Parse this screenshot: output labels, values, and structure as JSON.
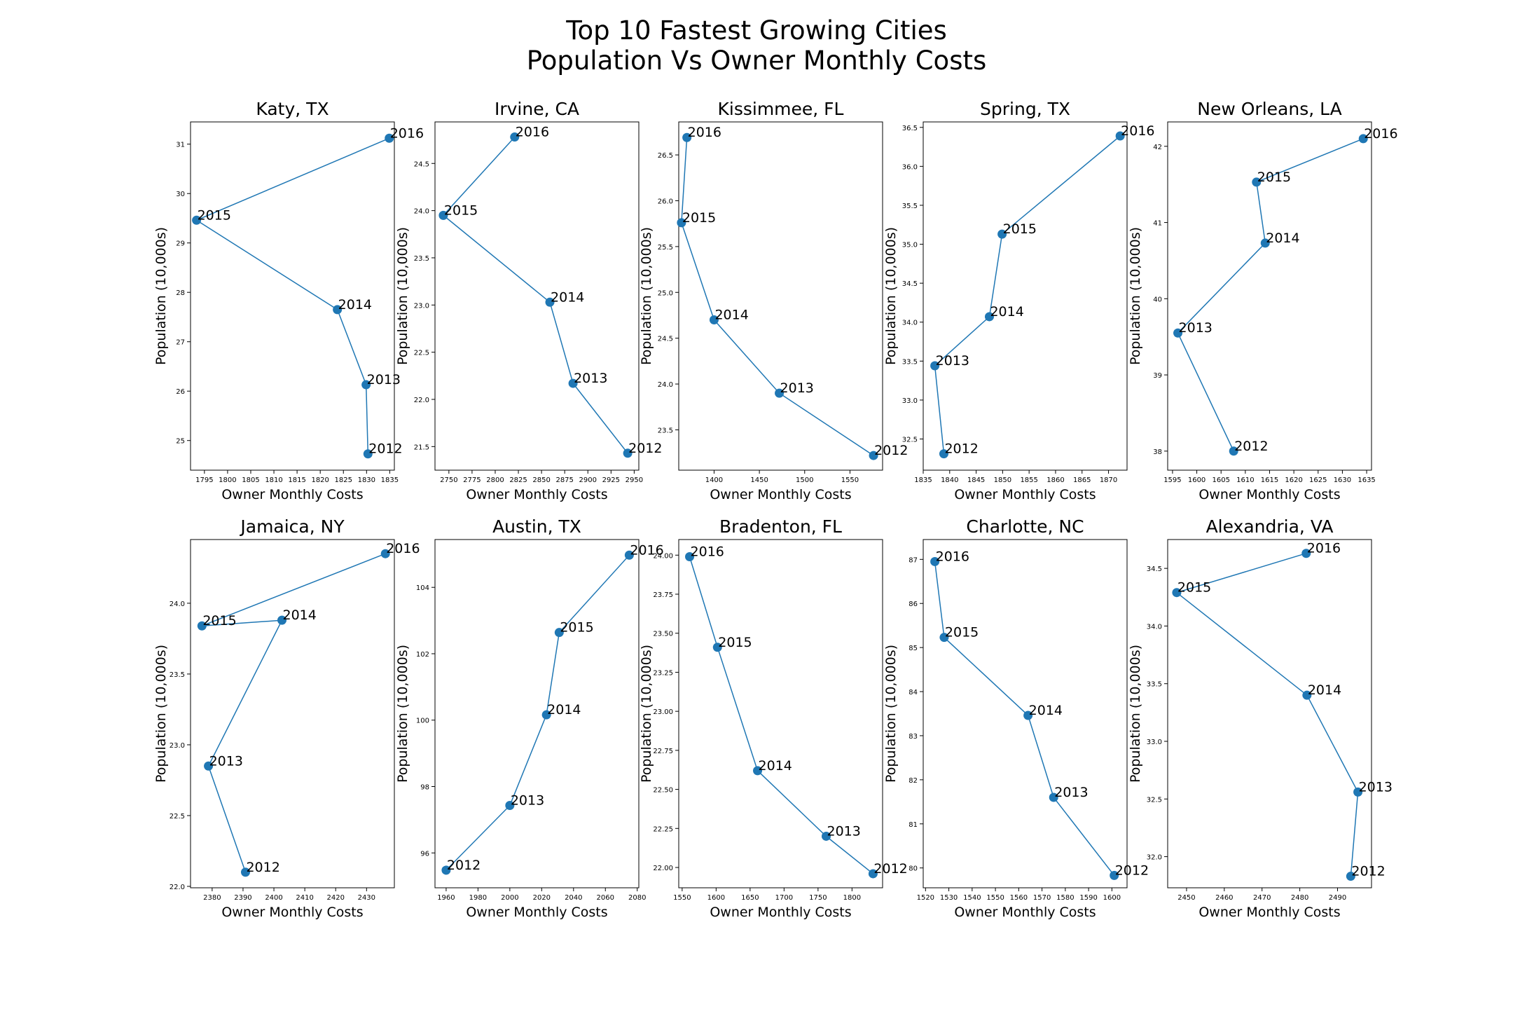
{
  "figure": {
    "title_lines": [
      "Top 10 Fastest Growing Cities",
      "Population Vs Owner Monthly Costs"
    ],
    "series_color": "#1f77b4"
  },
  "chart_data": [
    {
      "type": "line",
      "title": "Katy, TX",
      "xlabel": "Owner Monthly Costs",
      "ylabel": "Population (10,000s)",
      "xlim": [
        1792,
        1836
      ],
      "ylim": [
        24.4,
        31.45
      ],
      "xticks": [
        1795,
        1800,
        1805,
        1810,
        1815,
        1820,
        1825,
        1830,
        1835
      ],
      "xtick_labels": [
        "1795",
        "1800",
        "1805",
        "1810",
        "1815",
        "1820",
        "1825",
        "1830",
        "1835"
      ],
      "yticks": [
        25,
        26,
        27,
        28,
        29,
        30,
        31
      ],
      "ytick_labels": [
        "25",
        "26",
        "27",
        "28",
        "29",
        "30",
        "31"
      ],
      "points": [
        {
          "label": "2012",
          "x": 1830.3,
          "y": 24.73
        },
        {
          "label": "2013",
          "x": 1829.9,
          "y": 26.13
        },
        {
          "label": "2014",
          "x": 1823.7,
          "y": 27.65
        },
        {
          "label": "2015",
          "x": 1793.3,
          "y": 29.46
        },
        {
          "label": "2016",
          "x": 1834.9,
          "y": 31.12
        }
      ]
    },
    {
      "type": "line",
      "title": "Irvine, CA",
      "xlabel": "Owner Monthly Costs",
      "ylabel": "Population (10,000s)",
      "xlim": [
        2735,
        2955
      ],
      "ylim": [
        21.25,
        24.94
      ],
      "xticks": [
        2750,
        2775,
        2800,
        2825,
        2850,
        2875,
        2900,
        2925,
        2950
      ],
      "xtick_labels": [
        "2750",
        "2775",
        "2800",
        "2825",
        "2850",
        "2875",
        "2900",
        "2925",
        "2950"
      ],
      "yticks": [
        21.5,
        22.0,
        22.5,
        23.0,
        23.5,
        24.0,
        24.5
      ],
      "ytick_labels": [
        "21.5",
        "22.0",
        "22.5",
        "23.0",
        "23.5",
        "24.0",
        "24.5"
      ],
      "points": [
        {
          "label": "2012",
          "x": 2943,
          "y": 21.43
        },
        {
          "label": "2013",
          "x": 2884,
          "y": 22.17
        },
        {
          "label": "2014",
          "x": 2859,
          "y": 23.03
        },
        {
          "label": "2015",
          "x": 2744,
          "y": 23.95
        },
        {
          "label": "2016",
          "x": 2821,
          "y": 24.78
        }
      ]
    },
    {
      "type": "line",
      "title": "Kissimmee, FL",
      "xlabel": "Owner Monthly Costs",
      "ylabel": "Population (10,000s)",
      "xlim": [
        1361,
        1586
      ],
      "ylim": [
        23.06,
        26.86
      ],
      "xticks": [
        1400,
        1450,
        1500,
        1550
      ],
      "xtick_labels": [
        "1400",
        "1450",
        "1500",
        "1550"
      ],
      "yticks": [
        23.5,
        24.0,
        24.5,
        25.0,
        25.5,
        26.0,
        26.5
      ],
      "ytick_labels": [
        "23.5",
        "24.0",
        "24.5",
        "25.0",
        "25.5",
        "26.0",
        "26.5"
      ],
      "points": [
        {
          "label": "2012",
          "x": 1576,
          "y": 23.22
        },
        {
          "label": "2013",
          "x": 1472,
          "y": 23.9
        },
        {
          "label": "2014",
          "x": 1400,
          "y": 24.7
        },
        {
          "label": "2015",
          "x": 1364,
          "y": 25.76
        },
        {
          "label": "2016",
          "x": 1370,
          "y": 26.69
        }
      ]
    },
    {
      "type": "line",
      "title": "Spring, TX",
      "xlabel": "Owner Monthly Costs",
      "ylabel": "Population (10,000s)",
      "xlim": [
        1835,
        1873.5
      ],
      "ylim": [
        32.1,
        36.57
      ],
      "xticks": [
        1835,
        1840,
        1845,
        1850,
        1855,
        1860,
        1865,
        1870
      ],
      "xtick_labels": [
        "1835",
        "1840",
        "1845",
        "1850",
        "1855",
        "1860",
        "1865",
        "1870"
      ],
      "yticks": [
        32.5,
        33.0,
        33.5,
        34.0,
        34.5,
        35.0,
        35.5,
        36.0,
        36.5
      ],
      "ytick_labels": [
        "32.5",
        "33.0",
        "33.5",
        "34.0",
        "34.5",
        "35.0",
        "35.5",
        "36.0",
        "36.5"
      ],
      "points": [
        {
          "label": "2012",
          "x": 1838.9,
          "y": 32.31
        },
        {
          "label": "2013",
          "x": 1837.2,
          "y": 33.44
        },
        {
          "label": "2014",
          "x": 1847.5,
          "y": 34.07
        },
        {
          "label": "2015",
          "x": 1849.9,
          "y": 35.13
        },
        {
          "label": "2016",
          "x": 1872.2,
          "y": 36.39
        }
      ]
    },
    {
      "type": "line",
      "title": "New Orleans, LA",
      "xlabel": "Owner Monthly Costs",
      "ylabel": "Population (10,000s)",
      "xlim": [
        1594,
        1636
      ],
      "ylim": [
        37.75,
        42.32
      ],
      "xticks": [
        1595,
        1600,
        1605,
        1610,
        1615,
        1620,
        1625,
        1630,
        1635
      ],
      "xtick_labels": [
        "1595",
        "1600",
        "1605",
        "1610",
        "1615",
        "1620",
        "1625",
        "1630",
        "1635"
      ],
      "yticks": [
        38,
        39,
        40,
        41,
        42
      ],
      "ytick_labels": [
        "38",
        "39",
        "40",
        "41",
        "42"
      ],
      "points": [
        {
          "label": "2012",
          "x": 1607.6,
          "y": 38.0
        },
        {
          "label": "2013",
          "x": 1596.1,
          "y": 39.55
        },
        {
          "label": "2014",
          "x": 1614.1,
          "y": 40.73
        },
        {
          "label": "2015",
          "x": 1612.3,
          "y": 41.53
        },
        {
          "label": "2016",
          "x": 1634.3,
          "y": 42.1
        }
      ]
    },
    {
      "type": "line",
      "title": "Jamaica, NY",
      "xlabel": "Owner Monthly Costs",
      "ylabel": "Population (10,000s)",
      "xlim": [
        2373,
        2439
      ],
      "ylim": [
        21.99,
        24.45
      ],
      "xticks": [
        2380,
        2390,
        2400,
        2410,
        2420,
        2430
      ],
      "xtick_labels": [
        "2380",
        "2390",
        "2400",
        "2410",
        "2420",
        "2430"
      ],
      "yticks": [
        22.0,
        22.5,
        23.0,
        23.5,
        24.0
      ],
      "ytick_labels": [
        "22.0",
        "22.5",
        "23.0",
        "23.5",
        "24.0"
      ],
      "points": [
        {
          "label": "2012",
          "x": 2390.8,
          "y": 22.1
        },
        {
          "label": "2013",
          "x": 2378.8,
          "y": 22.85
        },
        {
          "label": "2014",
          "x": 2402.6,
          "y": 23.88
        },
        {
          "label": "2015",
          "x": 2376.7,
          "y": 23.84
        },
        {
          "label": "2016",
          "x": 2436.1,
          "y": 24.35
        }
      ]
    },
    {
      "type": "line",
      "title": "Austin, TX",
      "xlabel": "Owner Monthly Costs",
      "ylabel": "Population (10,000s)",
      "xlim": [
        1953,
        2081
      ],
      "ylim": [
        94.95,
        105.44
      ],
      "xticks": [
        1960,
        1980,
        2000,
        2020,
        2040,
        2060,
        2080
      ],
      "xtick_labels": [
        "1960",
        "1980",
        "2000",
        "2020",
        "2040",
        "2060",
        "2080"
      ],
      "yticks": [
        96,
        98,
        100,
        102,
        104
      ],
      "ytick_labels": [
        "96",
        "98",
        "100",
        "102",
        "104"
      ],
      "points": [
        {
          "label": "2012",
          "x": 1960,
          "y": 95.48
        },
        {
          "label": "2013",
          "x": 2000,
          "y": 97.43
        },
        {
          "label": "2014",
          "x": 2023,
          "y": 100.16
        },
        {
          "label": "2015",
          "x": 2031,
          "y": 102.64
        },
        {
          "label": "2016",
          "x": 2075,
          "y": 104.97
        }
      ]
    },
    {
      "type": "line",
      "title": "Bradenton, FL",
      "xlabel": "Owner Monthly Costs",
      "ylabel": "Population (10,000s)",
      "xlim": [
        1545,
        1845
      ],
      "ylim": [
        21.87,
        24.1
      ],
      "xticks": [
        1550,
        1600,
        1650,
        1700,
        1750,
        1800
      ],
      "xtick_labels": [
        "1550",
        "1600",
        "1650",
        "1700",
        "1750",
        "1800"
      ],
      "yticks": [
        22.0,
        22.25,
        22.5,
        22.75,
        23.0,
        23.25,
        23.5,
        23.75,
        24.0
      ],
      "ytick_labels": [
        "22.00",
        "22.25",
        "22.50",
        "22.75",
        "23.00",
        "23.25",
        "23.50",
        "23.75",
        "24.00"
      ],
      "points": [
        {
          "label": "2012",
          "x": 1831,
          "y": 21.96
        },
        {
          "label": "2013",
          "x": 1762,
          "y": 22.2
        },
        {
          "label": "2014",
          "x": 1661,
          "y": 22.62
        },
        {
          "label": "2015",
          "x": 1602,
          "y": 23.41
        },
        {
          "label": "2016",
          "x": 1561,
          "y": 23.99
        }
      ]
    },
    {
      "type": "line",
      "title": "Charlotte, NC",
      "xlabel": "Owner Monthly Costs",
      "ylabel": "Population (10,000s)",
      "xlim": [
        1519,
        1606.5
      ],
      "ylim": [
        79.55,
        87.45
      ],
      "xticks": [
        1520,
        1530,
        1540,
        1550,
        1560,
        1570,
        1580,
        1590,
        1600
      ],
      "xtick_labels": [
        "1520",
        "1530",
        "1540",
        "1550",
        "1560",
        "1570",
        "1580",
        "1590",
        "1600"
      ],
      "yticks": [
        80,
        81,
        82,
        83,
        84,
        85,
        86,
        87
      ],
      "ytick_labels": [
        "80",
        "81",
        "82",
        "83",
        "84",
        "85",
        "86",
        "87"
      ],
      "points": [
        {
          "label": "2012",
          "x": 1601,
          "y": 79.83
        },
        {
          "label": "2013",
          "x": 1575,
          "y": 81.6
        },
        {
          "label": "2014",
          "x": 1564,
          "y": 83.46
        },
        {
          "label": "2015",
          "x": 1528,
          "y": 85.23
        },
        {
          "label": "2016",
          "x": 1524,
          "y": 86.95
        }
      ]
    },
    {
      "type": "line",
      "title": "Alexandria, VA",
      "xlabel": "Owner Monthly Costs",
      "ylabel": "Population (10,000s)",
      "xlim": [
        2445,
        2499
      ],
      "ylim": [
        31.73,
        34.75
      ],
      "xticks": [
        2450,
        2460,
        2470,
        2480,
        2490
      ],
      "xtick_labels": [
        "2450",
        "2460",
        "2470",
        "2480",
        "2490"
      ],
      "yticks": [
        32.0,
        32.5,
        33.0,
        33.5,
        34.0,
        34.5
      ],
      "ytick_labels": [
        "32.0",
        "32.5",
        "33.0",
        "33.5",
        "34.0",
        "34.5"
      ],
      "points": [
        {
          "label": "2012",
          "x": 2493.5,
          "y": 31.83
        },
        {
          "label": "2013",
          "x": 2495.4,
          "y": 32.56
        },
        {
          "label": "2014",
          "x": 2481.9,
          "y": 33.4
        },
        {
          "label": "2015",
          "x": 2447.4,
          "y": 34.29
        },
        {
          "label": "2016",
          "x": 2481.7,
          "y": 34.63
        }
      ]
    }
  ]
}
